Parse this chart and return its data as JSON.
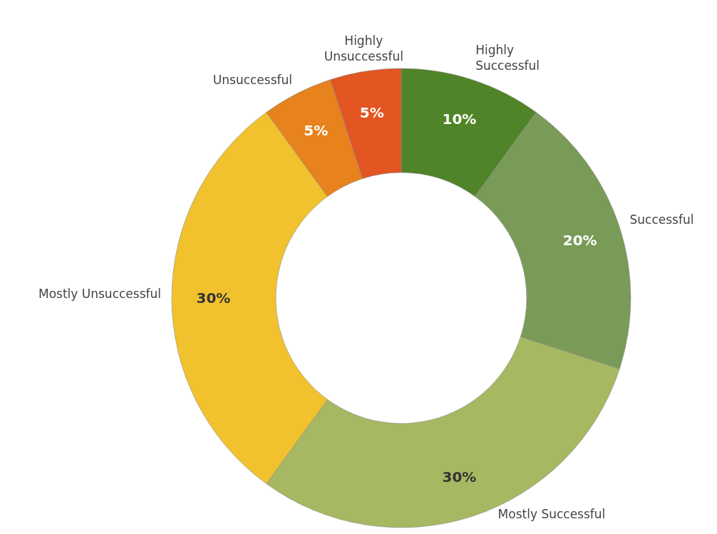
{
  "chart_data": {
    "type": "donut",
    "categories": [
      "Highly Successful",
      "Successful",
      "Mostly Successful",
      "Mostly Unsuccessful",
      "Unsuccessful",
      "Highly Unsuccessful"
    ],
    "values": [
      10,
      20,
      30,
      30,
      5,
      5
    ],
    "colors": [
      "#4f8428",
      "#7a9b57",
      "#a7b862",
      "#f2c22e",
      "#e8821c",
      "#e35521"
    ],
    "value_labels": [
      "10%",
      "20%",
      "30%",
      "30%",
      "5%",
      "5%"
    ]
  }
}
